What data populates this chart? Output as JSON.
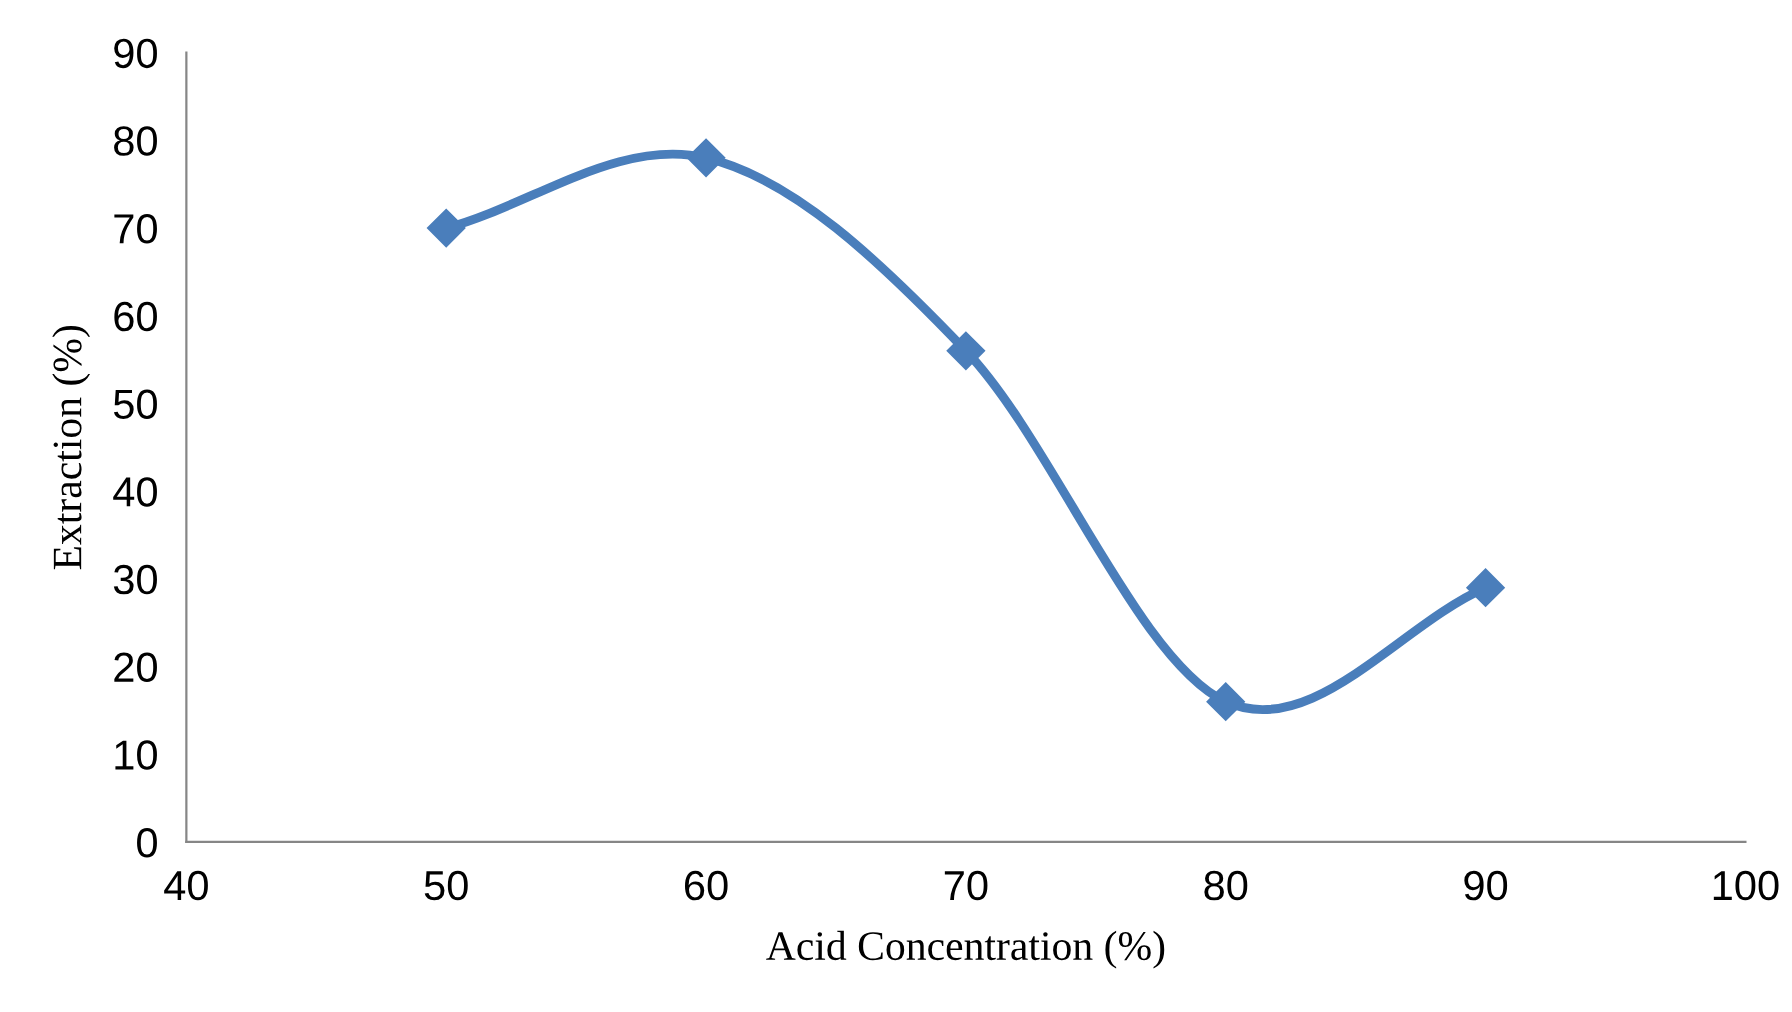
{
  "chart_data": {
    "type": "line",
    "xlabel": "Acid Concentration (%)",
    "ylabel": "Extraction (%)",
    "x": [
      50,
      60,
      70,
      80,
      90
    ],
    "series": [
      {
        "color": "#4a7ebb",
        "values": [
          70,
          78,
          56,
          16,
          29
        ]
      }
    ],
    "xlim": [
      40,
      100
    ],
    "xticks": [
      40,
      50,
      60,
      70,
      80,
      90,
      100
    ],
    "ylim": [
      0,
      90
    ],
    "yticks": [
      0,
      10,
      20,
      30,
      40,
      50,
      60,
      70,
      80,
      90
    ],
    "grid": false,
    "marker": "diamond",
    "line_style": "solid"
  }
}
